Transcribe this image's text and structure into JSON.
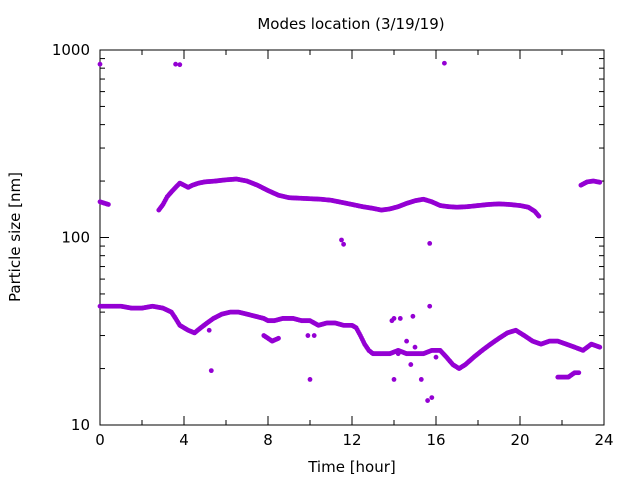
{
  "chart_data": {
    "type": "scatter",
    "title": "Modes location (3/19/19)",
    "xlabel": "Time [hour]",
    "ylabel": "Particle size [nm]",
    "xlim": [
      0,
      24
    ],
    "ylim": [
      10,
      1000
    ],
    "yscale": "log",
    "grid": false,
    "legend": "none",
    "color": "#9400d3",
    "x_ticks": [
      0,
      4,
      8,
      12,
      16,
      20,
      24
    ],
    "x_tick_labels": [
      "0",
      "4",
      "8",
      "12",
      "16",
      "20",
      "24"
    ],
    "y_ticks": [
      10,
      100,
      1000
    ],
    "y_tick_labels": [
      "10",
      "100",
      "1000"
    ],
    "series": [
      {
        "segments": [
          [
            [
              0.0,
              155
            ],
            [
              0.4,
              150
            ]
          ],
          [
            [
              2.8,
              140
            ],
            [
              3.0,
              150
            ],
            [
              3.2,
              165
            ],
            [
              3.4,
              175
            ],
            [
              3.6,
              185
            ],
            [
              3.8,
              195
            ],
            [
              4.0,
              190
            ],
            [
              4.2,
              185
            ],
            [
              4.4,
              190
            ],
            [
              4.7,
              195
            ],
            [
              5.0,
              198
            ],
            [
              5.5,
              200
            ],
            [
              6.0,
              203
            ],
            [
              6.5,
              205
            ],
            [
              7.0,
              200
            ],
            [
              7.5,
              190
            ],
            [
              8.0,
              178
            ],
            [
              8.5,
              168
            ],
            [
              9.0,
              163
            ],
            [
              9.5,
              162
            ],
            [
              10.0,
              161
            ],
            [
              10.5,
              160
            ],
            [
              11.0,
              158
            ],
            [
              11.5,
              154
            ],
            [
              12.0,
              150
            ],
            [
              12.5,
              146
            ],
            [
              13.0,
              143
            ],
            [
              13.4,
              140
            ],
            [
              13.8,
              142
            ],
            [
              14.2,
              146
            ],
            [
              14.6,
              152
            ],
            [
              15.0,
              157
            ],
            [
              15.4,
              160
            ],
            [
              15.8,
              155
            ],
            [
              16.2,
              148
            ],
            [
              16.6,
              146
            ],
            [
              17.0,
              145
            ],
            [
              17.5,
              146
            ],
            [
              18.0,
              148
            ],
            [
              18.5,
              150
            ],
            [
              19.0,
              151
            ],
            [
              19.5,
              150
            ],
            [
              20.0,
              148
            ],
            [
              20.4,
              145
            ],
            [
              20.7,
              138
            ],
            [
              20.9,
              130
            ]
          ],
          [
            [
              22.9,
              190
            ],
            [
              23.2,
              198
            ],
            [
              23.5,
              200
            ],
            [
              23.8,
              197
            ]
          ]
        ]
      },
      {
        "segments": [
          [
            [
              0.0,
              43
            ],
            [
              0.5,
              43
            ],
            [
              1.0,
              43
            ],
            [
              1.5,
              42
            ],
            [
              2.0,
              42
            ],
            [
              2.5,
              43
            ],
            [
              3.0,
              42
            ],
            [
              3.4,
              40
            ],
            [
              3.6,
              37
            ],
            [
              3.8,
              34
            ],
            [
              4.0,
              33
            ],
            [
              4.2,
              32
            ],
            [
              4.5,
              31
            ],
            [
              4.8,
              33
            ],
            [
              5.1,
              35
            ],
            [
              5.4,
              37
            ],
            [
              5.8,
              39
            ],
            [
              6.2,
              40
            ],
            [
              6.6,
              40
            ],
            [
              7.0,
              39
            ],
            [
              7.4,
              38
            ],
            [
              7.8,
              37
            ],
            [
              8.0,
              36
            ],
            [
              8.3,
              36
            ],
            [
              8.7,
              37
            ],
            [
              9.2,
              37
            ],
            [
              9.6,
              36
            ],
            [
              10.0,
              36
            ],
            [
              10.4,
              34
            ],
            [
              10.8,
              35
            ],
            [
              11.2,
              35
            ],
            [
              11.6,
              34
            ],
            [
              12.0,
              34
            ],
            [
              12.2,
              33
            ],
            [
              12.4,
              30
            ],
            [
              12.6,
              27
            ],
            [
              12.8,
              25
            ],
            [
              13.0,
              24
            ],
            [
              13.4,
              24
            ],
            [
              13.8,
              24
            ],
            [
              14.2,
              25
            ],
            [
              14.6,
              24
            ],
            [
              15.0,
              24
            ],
            [
              15.4,
              24
            ],
            [
              15.8,
              25
            ],
            [
              16.2,
              25
            ],
            [
              16.5,
              23
            ],
            [
              16.8,
              21
            ],
            [
              17.1,
              20
            ],
            [
              17.4,
              21
            ],
            [
              17.8,
              23
            ],
            [
              18.2,
              25
            ],
            [
              18.6,
              27
            ],
            [
              19.0,
              29
            ],
            [
              19.4,
              31
            ],
            [
              19.8,
              32
            ],
            [
              20.2,
              30
            ],
            [
              20.6,
              28
            ],
            [
              21.0,
              27
            ],
            [
              21.4,
              28
            ],
            [
              21.8,
              28
            ],
            [
              22.2,
              27
            ],
            [
              22.6,
              26
            ],
            [
              23.0,
              25
            ],
            [
              23.4,
              27
            ],
            [
              23.8,
              26
            ]
          ],
          [
            [
              7.8,
              30
            ],
            [
              8.0,
              29
            ],
            [
              8.2,
              28
            ],
            [
              8.5,
              29
            ]
          ],
          [
            [
              21.8,
              18
            ],
            [
              22.0,
              18
            ],
            [
              22.3,
              18
            ],
            [
              22.6,
              19
            ],
            [
              22.8,
              19
            ]
          ]
        ]
      },
      {
        "points": [
          [
            0.0,
            840
          ],
          [
            3.6,
            840
          ],
          [
            3.8,
            835
          ],
          [
            16.4,
            850
          ],
          [
            11.5,
            97
          ],
          [
            11.6,
            92
          ],
          [
            15.7,
            93
          ],
          [
            15.7,
            43
          ],
          [
            10.0,
            17.5
          ],
          [
            5.3,
            19.5
          ],
          [
            5.2,
            32
          ],
          [
            9.9,
            30
          ],
          [
            10.2,
            30
          ],
          [
            14.0,
            17.5
          ],
          [
            14.0,
            37
          ],
          [
            14.3,
            37
          ],
          [
            14.6,
            28
          ],
          [
            14.8,
            21
          ],
          [
            14.9,
            38
          ],
          [
            15.0,
            26
          ],
          [
            15.3,
            17.5
          ],
          [
            15.6,
            13.5
          ],
          [
            15.8,
            14
          ],
          [
            16.0,
            23
          ],
          [
            13.9,
            36
          ],
          [
            14.2,
            24
          ]
        ]
      }
    ]
  }
}
